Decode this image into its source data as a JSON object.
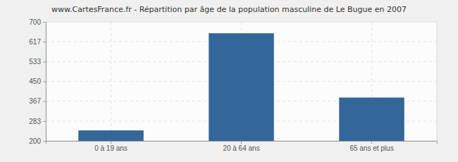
{
  "chart_data": {
    "type": "bar",
    "title": "www.CartesFrance.fr - Répartition par âge de la population masculine de Le Bugue en 2007",
    "categories": [
      "0 à 19 ans",
      "20 à 64 ans",
      "65 ans et plus"
    ],
    "values": [
      244,
      652,
      382
    ],
    "color": "#336699",
    "ylim": [
      200,
      700
    ],
    "yticks": [
      200,
      283,
      367,
      450,
      533,
      617,
      700
    ],
    "grid": true
  }
}
